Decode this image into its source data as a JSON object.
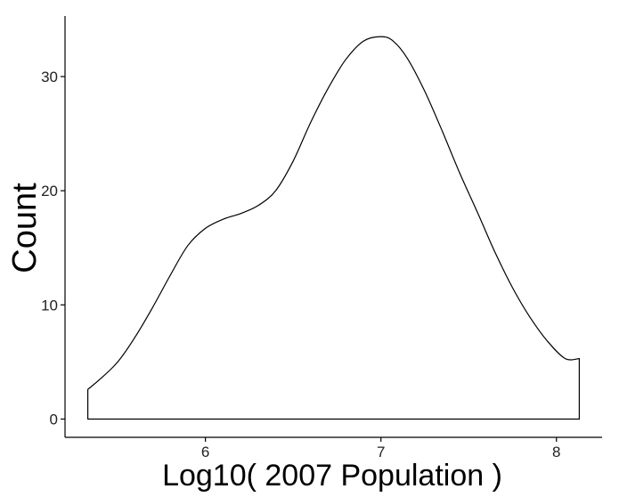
{
  "chart_data": {
    "type": "area",
    "subtype": "density-outline",
    "xlabel": "Log10( 2007 Population )",
    "ylabel": "Count",
    "xlim": [
      5.2,
      8.26
    ],
    "ylim": [
      -1.6,
      35.3
    ],
    "x_ticks": [
      6,
      7,
      8
    ],
    "y_ticks": [
      0,
      10,
      20,
      30
    ],
    "grid": false,
    "legend": "none",
    "baseline": 0,
    "line_color": "#000000",
    "fill_color": "none",
    "series": [
      {
        "x": [
          5.33,
          5.4,
          5.5,
          5.6,
          5.7,
          5.8,
          5.9,
          6.0,
          6.1,
          6.2,
          6.3,
          6.4,
          6.5,
          6.6,
          6.7,
          6.8,
          6.9,
          7.0,
          7.07,
          7.15,
          7.25,
          7.35,
          7.45,
          7.55,
          7.65,
          7.75,
          7.85,
          7.95,
          8.05,
          8.13
        ],
        "y": [
          2.6,
          3.5,
          5.0,
          7.2,
          9.8,
          12.6,
          15.2,
          16.7,
          17.5,
          18.0,
          18.7,
          20.0,
          22.6,
          26.0,
          29.0,
          31.5,
          33.1,
          33.5,
          33.1,
          31.6,
          28.7,
          25.2,
          21.5,
          18.1,
          14.6,
          11.5,
          8.9,
          6.8,
          5.3,
          5.3
        ]
      }
    ]
  }
}
